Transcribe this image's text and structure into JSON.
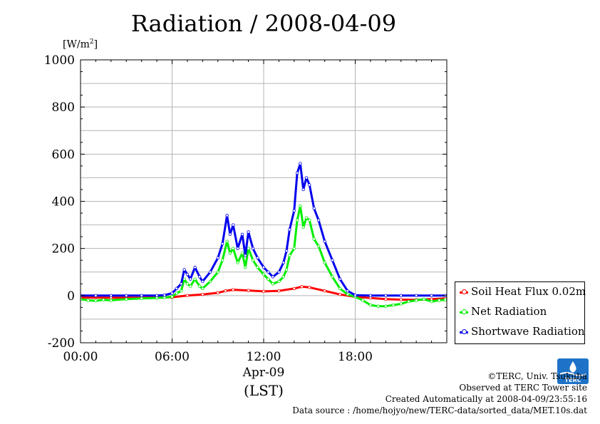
{
  "chart_data": {
    "type": "line",
    "title": "Radiation / 2008-04-09",
    "ylabel": "[W/m2]",
    "xlabel_date": "Apr-09",
    "xlabel_tz": "(LST)",
    "ylim": [
      -200,
      1000
    ],
    "xlim": [
      0,
      24
    ],
    "yticks": [
      -200,
      0,
      200,
      400,
      600,
      800,
      1000
    ],
    "xticks": [
      0,
      6,
      12,
      18
    ],
    "xtick_labels": [
      "00:00",
      "06:00",
      "12:00",
      "18:00"
    ],
    "grid": true,
    "legend_position": "bottom-right",
    "series": [
      {
        "name": "Soil Heat Flux 0.02m",
        "color": "#ff0000",
        "x": [
          0,
          2,
          4,
          6,
          7,
          8,
          9,
          9.5,
          10,
          11,
          12,
          13,
          14,
          14.5,
          15,
          16,
          17,
          18,
          19,
          20,
          21,
          22,
          23,
          23.9
        ],
        "values": [
          -8,
          -9,
          -9,
          -7,
          0,
          5,
          12,
          20,
          25,
          22,
          18,
          20,
          30,
          38,
          35,
          20,
          5,
          -5,
          -10,
          -15,
          -17,
          -18,
          -15,
          -12
        ]
      },
      {
        "name": "Net Radiation",
        "color": "#00ee00",
        "x": [
          0,
          0.5,
          1,
          1.5,
          2,
          3,
          4,
          5,
          5.5,
          6,
          6.3,
          6.6,
          6.8,
          7,
          7.2,
          7.5,
          7.8,
          8,
          8.5,
          9,
          9.3,
          9.6,
          9.8,
          10,
          10.3,
          10.6,
          10.8,
          11,
          11.3,
          11.6,
          12,
          12.3,
          12.6,
          13,
          13.3,
          13.5,
          13.7,
          14,
          14.2,
          14.4,
          14.6,
          14.8,
          15,
          15.3,
          15.6,
          16,
          16.5,
          17,
          17.5,
          18,
          18.5,
          19,
          19.5,
          20,
          20.5,
          21,
          21.5,
          22,
          22.5,
          23,
          23.5,
          23.9
        ],
        "values": [
          -15,
          -20,
          -22,
          -18,
          -20,
          -15,
          -12,
          -10,
          -8,
          -5,
          10,
          20,
          70,
          50,
          40,
          70,
          40,
          30,
          60,
          100,
          150,
          230,
          180,
          200,
          140,
          180,
          120,
          200,
          150,
          120,
          90,
          70,
          50,
          60,
          80,
          110,
          170,
          200,
          320,
          380,
          290,
          330,
          320,
          240,
          210,
          140,
          80,
          30,
          5,
          -5,
          -20,
          -40,
          -45,
          -45,
          -40,
          -35,
          -25,
          -20,
          -15,
          -25,
          -20,
          -18
        ]
      },
      {
        "name": "Shortwave Radiation",
        "color": "#0000ee",
        "x": [
          0,
          1,
          2,
          3,
          4,
          5,
          5.5,
          6,
          6.3,
          6.6,
          6.8,
          7,
          7.2,
          7.5,
          7.8,
          8,
          8.5,
          9,
          9.3,
          9.6,
          9.8,
          10,
          10.3,
          10.6,
          10.8,
          11,
          11.3,
          11.6,
          12,
          12.3,
          12.6,
          13,
          13.3,
          13.5,
          13.7,
          14,
          14.2,
          14.4,
          14.6,
          14.8,
          15,
          15.3,
          15.6,
          16,
          16.5,
          17,
          17.5,
          18,
          19,
          20,
          21,
          22,
          23,
          23.9
        ],
        "values": [
          0,
          0,
          0,
          0,
          0,
          0,
          2,
          10,
          30,
          50,
          110,
          90,
          70,
          120,
          80,
          60,
          100,
          160,
          220,
          340,
          260,
          300,
          200,
          260,
          170,
          270,
          200,
          160,
          120,
          100,
          80,
          100,
          140,
          190,
          280,
          360,
          520,
          560,
          450,
          500,
          470,
          370,
          320,
          230,
          150,
          70,
          20,
          2,
          0,
          0,
          0,
          0,
          0,
          0
        ]
      }
    ]
  },
  "footer": {
    "copyright": "©TERC, Univ. Tsukuba",
    "site": "Observed at TERC Tower site",
    "created": "Created Automatically at 2008-04-09/23:55:16",
    "source": "Data source : /home/hojyo/new/TERC-data/sorted_data/MET.10s.dat"
  },
  "logo_text": "TERC"
}
